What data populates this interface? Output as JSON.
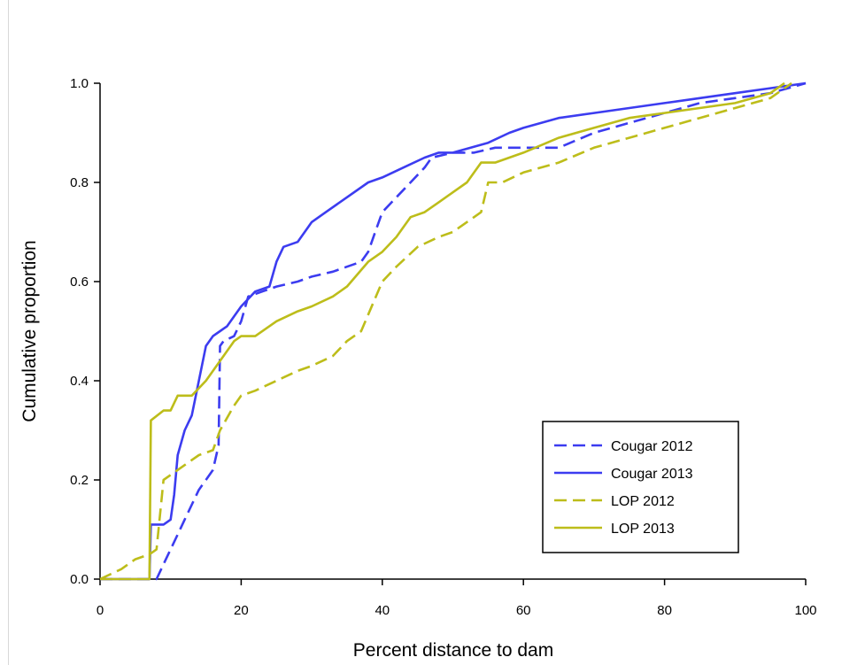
{
  "chart_data": {
    "type": "line",
    "title": "",
    "xlabel": "Percent distance to dam",
    "ylabel": "Cumulative proportion",
    "xlim": [
      0,
      100
    ],
    "ylim": [
      0,
      1
    ],
    "xticks": [
      0,
      20,
      40,
      60,
      80,
      100
    ],
    "yticks": [
      0.0,
      0.2,
      0.4,
      0.6,
      0.8,
      1.0
    ],
    "xtick_labels": [
      "0",
      "20",
      "40",
      "60",
      "80",
      "100"
    ],
    "ytick_labels": [
      "0.0",
      "0.2",
      "0.4",
      "0.6",
      "0.8",
      "1.0"
    ],
    "grid": false,
    "legend": {
      "placement": "bottom-right"
    },
    "series": [
      {
        "name": "Cougar 2012",
        "color": "#3c3cf0",
        "dash": "dashed",
        "x": [
          0,
          8,
          9,
          10,
          11,
          12,
          13,
          14,
          15,
          16,
          16.8,
          17,
          17.5,
          19,
          20,
          21,
          23,
          25,
          28,
          30,
          33,
          35,
          37,
          38,
          39,
          40,
          42,
          44,
          46,
          47,
          50,
          53,
          56,
          60,
          65,
          70,
          75,
          80,
          85,
          90,
          95,
          100
        ],
        "y": [
          0,
          0,
          0.03,
          0.06,
          0.09,
          0.12,
          0.15,
          0.18,
          0.2,
          0.22,
          0.27,
          0.47,
          0.48,
          0.49,
          0.52,
          0.57,
          0.58,
          0.59,
          0.6,
          0.61,
          0.62,
          0.63,
          0.64,
          0.66,
          0.7,
          0.74,
          0.77,
          0.8,
          0.83,
          0.85,
          0.86,
          0.86,
          0.87,
          0.87,
          0.87,
          0.9,
          0.92,
          0.94,
          0.96,
          0.97,
          0.98,
          1.0
        ]
      },
      {
        "name": "Cougar 2013",
        "color": "#3c3cf0",
        "dash": "solid",
        "x": [
          0,
          7,
          7.2,
          9,
          10,
          10.5,
          11,
          12,
          13,
          14,
          15,
          16,
          17,
          18,
          19,
          20,
          22,
          24,
          25,
          26,
          28,
          30,
          32,
          35,
          38,
          40,
          43,
          46,
          48,
          50,
          55,
          58,
          60,
          65,
          70,
          75,
          80,
          85,
          90,
          95,
          100
        ],
        "y": [
          0,
          0,
          0.11,
          0.11,
          0.12,
          0.17,
          0.25,
          0.3,
          0.33,
          0.4,
          0.47,
          0.49,
          0.5,
          0.51,
          0.53,
          0.55,
          0.58,
          0.59,
          0.64,
          0.67,
          0.68,
          0.72,
          0.74,
          0.77,
          0.8,
          0.81,
          0.83,
          0.85,
          0.86,
          0.86,
          0.88,
          0.9,
          0.91,
          0.93,
          0.94,
          0.95,
          0.96,
          0.97,
          0.98,
          0.99,
          1.0
        ]
      },
      {
        "name": "LOP 2012",
        "color": "#bdbd1a",
        "dash": "dashed",
        "x": [
          0,
          3,
          5,
          7,
          8,
          9,
          10,
          12,
          14,
          16,
          17,
          19,
          20,
          22,
          25,
          28,
          30,
          33,
          35,
          37,
          40,
          42,
          45,
          48,
          50,
          52,
          54,
          55,
          57,
          60,
          65,
          70,
          75,
          80,
          85,
          90,
          95,
          98
        ],
        "y": [
          0,
          0.02,
          0.04,
          0.05,
          0.06,
          0.2,
          0.21,
          0.23,
          0.25,
          0.26,
          0.3,
          0.35,
          0.37,
          0.38,
          0.4,
          0.42,
          0.43,
          0.45,
          0.48,
          0.5,
          0.6,
          0.63,
          0.67,
          0.69,
          0.7,
          0.72,
          0.74,
          0.8,
          0.8,
          0.82,
          0.84,
          0.87,
          0.89,
          0.91,
          0.93,
          0.95,
          0.97,
          1.0
        ]
      },
      {
        "name": "LOP 2013",
        "color": "#bdbd1a",
        "dash": "solid",
        "x": [
          0,
          7,
          7.2,
          9,
          10,
          11,
          13,
          15,
          17,
          18,
          19,
          20,
          22,
          25,
          28,
          30,
          33,
          35,
          38,
          40,
          42,
          44,
          46,
          48,
          50,
          52,
          54,
          56,
          60,
          65,
          70,
          75,
          80,
          85,
          90,
          95,
          97
        ],
        "y": [
          0,
          0,
          0.32,
          0.34,
          0.34,
          0.37,
          0.37,
          0.4,
          0.44,
          0.46,
          0.48,
          0.49,
          0.49,
          0.52,
          0.54,
          0.55,
          0.57,
          0.59,
          0.64,
          0.66,
          0.69,
          0.73,
          0.74,
          0.76,
          0.78,
          0.8,
          0.84,
          0.84,
          0.86,
          0.89,
          0.91,
          0.93,
          0.94,
          0.95,
          0.96,
          0.98,
          1.0
        ]
      }
    ]
  }
}
